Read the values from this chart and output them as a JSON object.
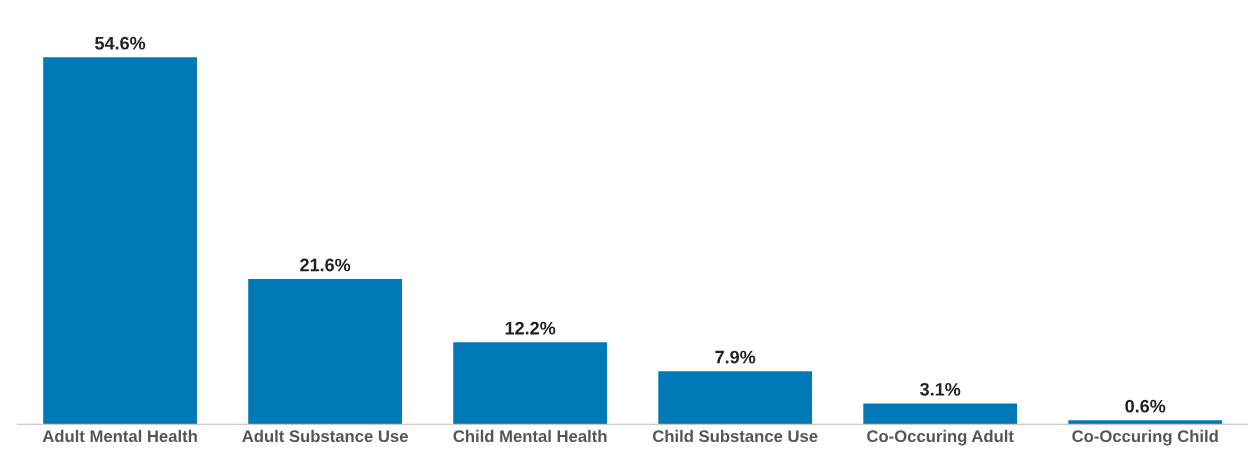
{
  "chart_data": {
    "type": "bar",
    "categories": [
      "Adult Mental Health",
      "Adult Substance Use",
      "Child Mental Health",
      "Child Substance Use",
      "Co-Occuring Adult",
      "Co-Occuring Child"
    ],
    "values": [
      54.6,
      21.6,
      12.2,
      7.9,
      3.1,
      0.6
    ],
    "value_labels": [
      "54.6%",
      "21.6%",
      "12.2%",
      "7.9%",
      "3.1%",
      "0.6%"
    ],
    "color": "#0079b6",
    "grid": false,
    "legend": false
  }
}
